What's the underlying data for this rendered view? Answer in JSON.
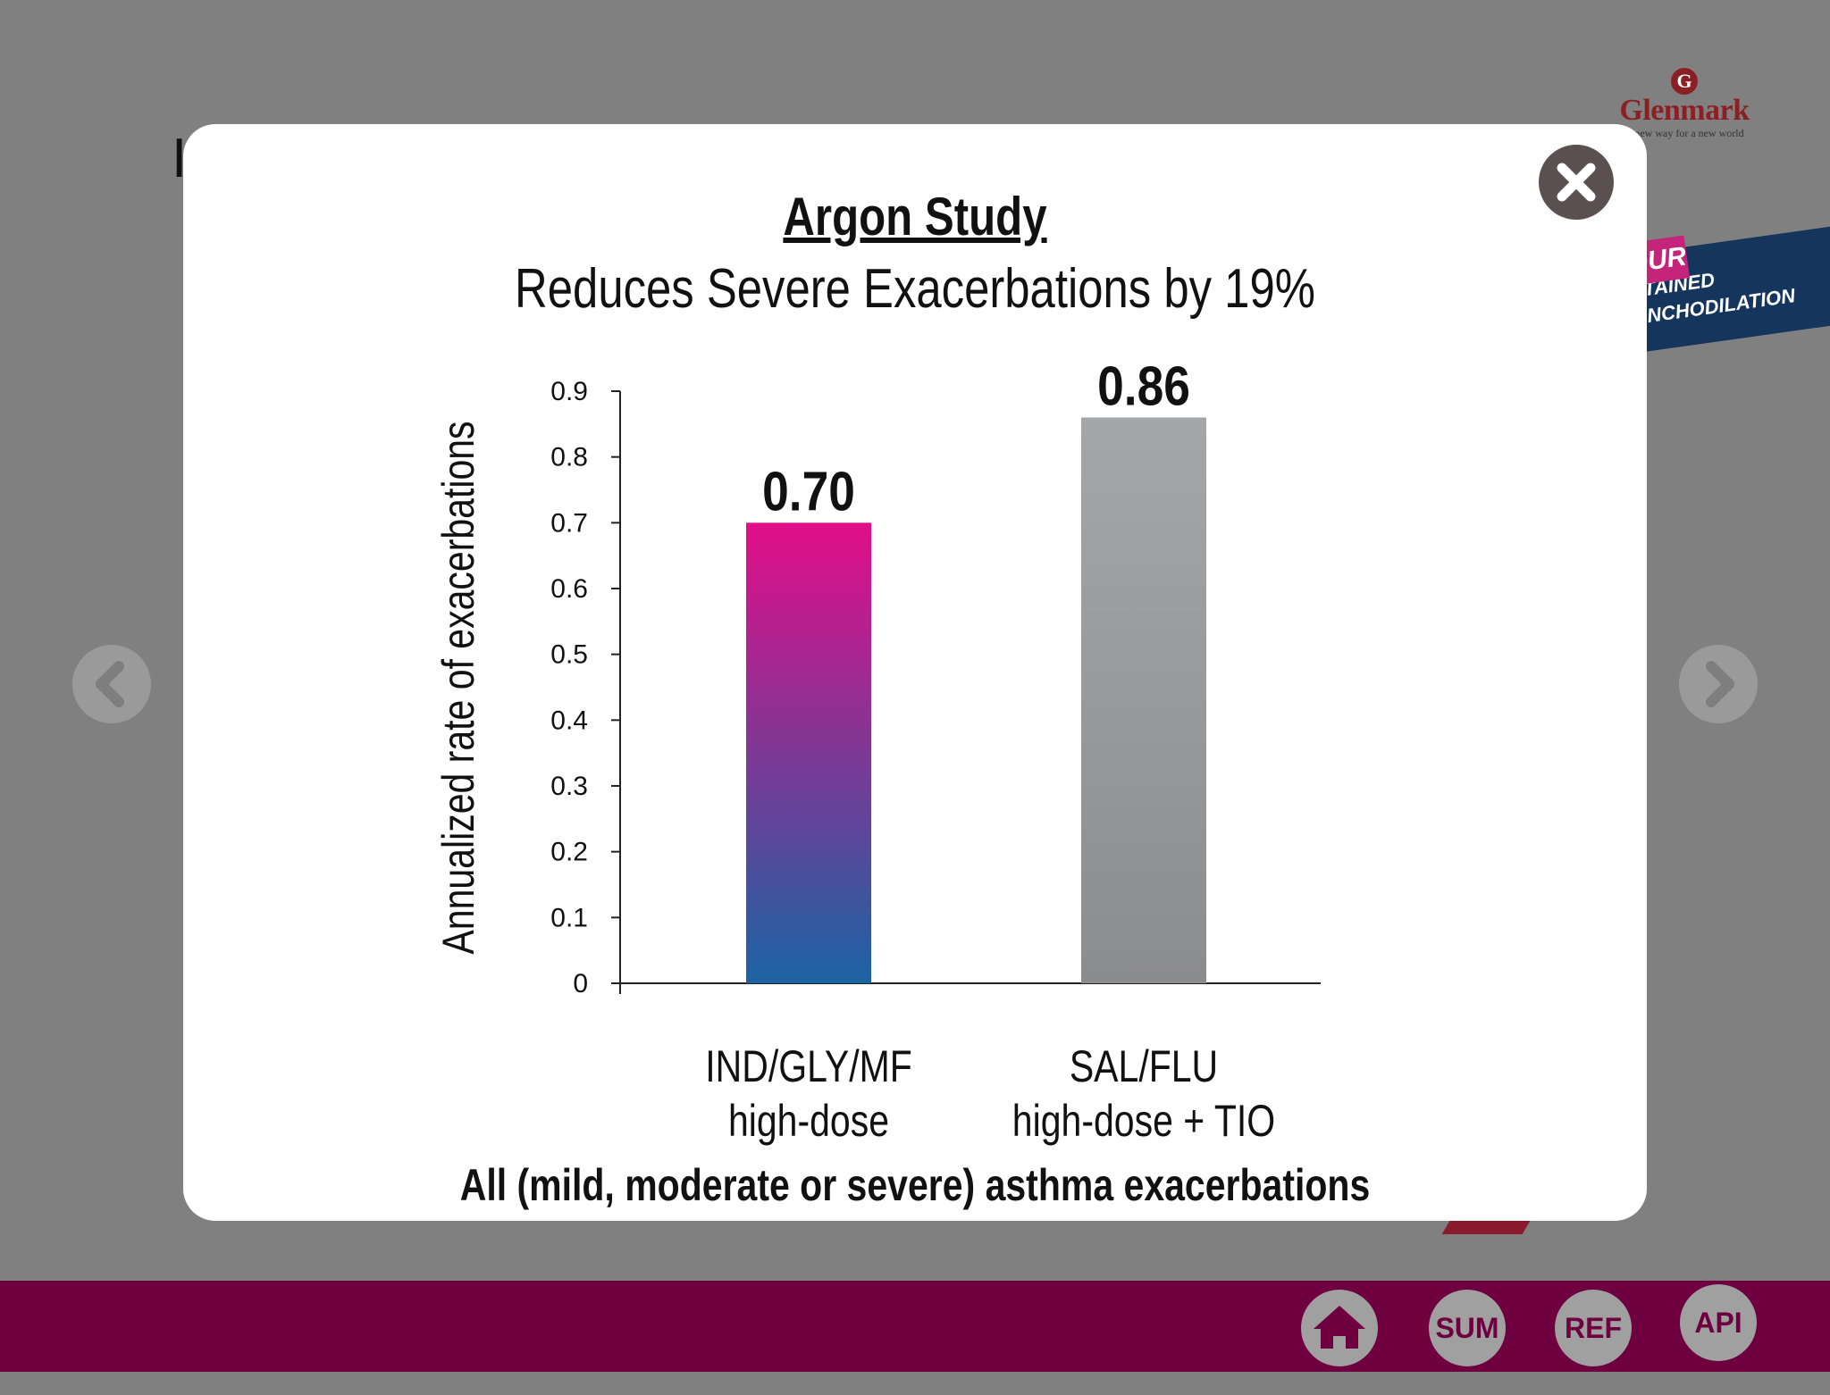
{
  "background": {
    "title_fragment": "I",
    "logo": {
      "mark": "G",
      "name": "Glenmark",
      "tagline": "A new way for a new world"
    },
    "ribbon": {
      "tag": "OUR",
      "line1": "TAINED",
      "line2": "NCHODILATION"
    }
  },
  "navigation": {
    "prev_icon": "chevron-left-icon",
    "next_icon": "chevron-right-icon"
  },
  "footer": {
    "home_icon": "home-icon",
    "sum_label": "SUM",
    "ref_label": "REF",
    "api_label": "API"
  },
  "modal": {
    "close_icon": "close-icon"
  },
  "colors": {
    "footer_bg": "#6f0040",
    "bar1_top": "#e20d89",
    "bar1_bottom": "#1b63a3",
    "bar2_top": "#a4a7aa",
    "bar2_bottom": "#8b8c8e"
  },
  "chart_data": {
    "type": "bar",
    "title": "Argon Study",
    "subtitle": "Reduces Severe Exacerbations by 19%",
    "ylabel": "Annualized rate of exacerbations",
    "xlabel": "",
    "ylim": [
      0,
      0.9
    ],
    "yticks": [
      "0",
      "0.1",
      "0.2",
      "0.3",
      "0.4",
      "0.5",
      "0.6",
      "0.7",
      "0.8",
      "0.9"
    ],
    "categories": [
      {
        "line1": "IND/GLY/MF",
        "line2": "high-dose"
      },
      {
        "line1": "SAL/FLU",
        "line2": "high-dose + TIO"
      }
    ],
    "values": [
      0.7,
      0.86
    ],
    "data_labels": [
      "0.70",
      "0.86"
    ],
    "footnote": "All (mild, moderate or severe) asthma exacerbations",
    "grid": false,
    "legend": "none"
  }
}
